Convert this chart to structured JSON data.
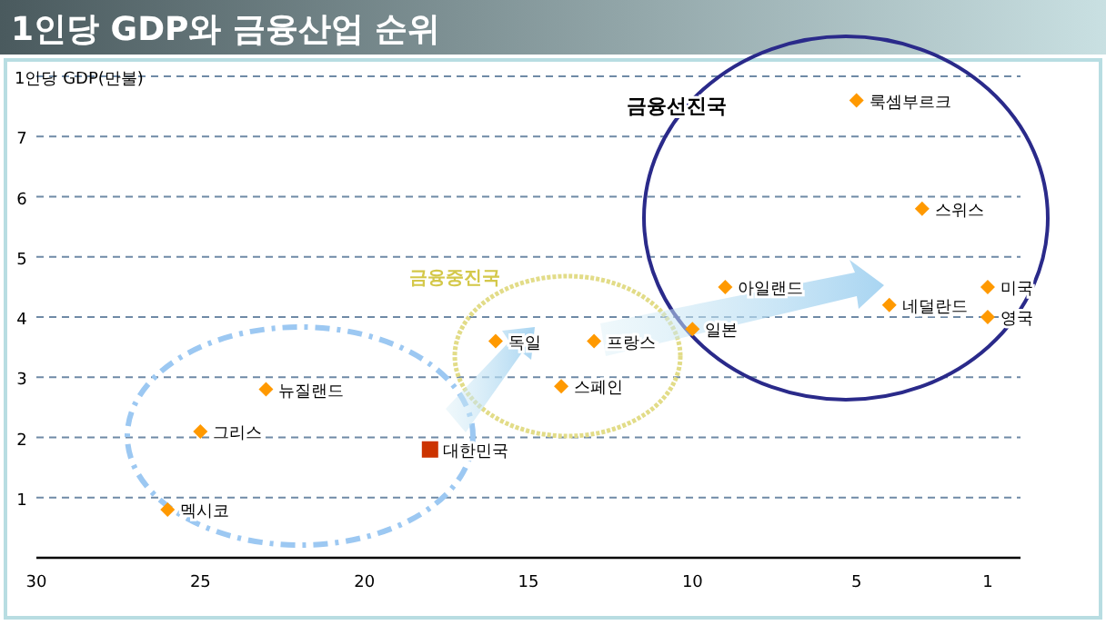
{
  "chart_data": {
    "type": "scatter",
    "title": "1인당 GDP와 금융산업 순위",
    "ylabel": "1인당 GDP(만불)",
    "xlim": [
      30,
      0
    ],
    "xticks": [
      30,
      25,
      20,
      15,
      10,
      5,
      1
    ],
    "ylim": [
      0,
      8
    ],
    "yticks": [
      {
        "value": 8,
        "label": null
      },
      7,
      6,
      5,
      4,
      3,
      2,
      1
    ],
    "grid": "y",
    "legend": false,
    "marker": "diamond",
    "annotations": [
      "금융선진국",
      "금융중진국"
    ],
    "series": [
      {
        "name": "멕시코",
        "color": "#ff9900",
        "x": [
          26
        ],
        "values": [
          0.8
        ]
      },
      {
        "name": "그리스",
        "color": "#ff9900",
        "x": [
          25
        ],
        "values": [
          2.1
        ]
      },
      {
        "name": "뉴질랜드",
        "color": "#ff9900",
        "x": [
          23
        ],
        "values": [
          2.8
        ]
      },
      {
        "name": "대한민국",
        "color": "#cc3300",
        "x": [
          18
        ],
        "values": [
          1.8
        ],
        "marker": "square"
      },
      {
        "name": "독일",
        "color": "#ff9900",
        "x": [
          16
        ],
        "values": [
          3.6
        ]
      },
      {
        "name": "스페인",
        "color": "#ff9900",
        "x": [
          14
        ],
        "values": [
          2.85
        ]
      },
      {
        "name": "프랑스",
        "color": "#ff9900",
        "x": [
          13
        ],
        "values": [
          3.6
        ]
      },
      {
        "name": "일본",
        "color": "#ff9900",
        "x": [
          10
        ],
        "values": [
          3.8
        ]
      },
      {
        "name": "아일랜드",
        "color": "#ff9900",
        "x": [
          9
        ],
        "values": [
          4.5
        ]
      },
      {
        "name": "룩셈부르크",
        "color": "#ff9900",
        "x": [
          5
        ],
        "values": [
          7.6
        ]
      },
      {
        "name": "스위스",
        "color": "#ff9900",
        "x": [
          3
        ],
        "values": [
          5.8
        ]
      },
      {
        "name": "네덜란드",
        "color": "#ff9900",
        "x": [
          4
        ],
        "values": [
          4.2
        ]
      },
      {
        "name": "미국",
        "color": "#ff9900",
        "x": [
          1
        ],
        "values": [
          4.5
        ]
      },
      {
        "name": "영국",
        "color": "#ff9900",
        "x": [
          1
        ],
        "values": [
          4.0
        ]
      }
    ]
  }
}
